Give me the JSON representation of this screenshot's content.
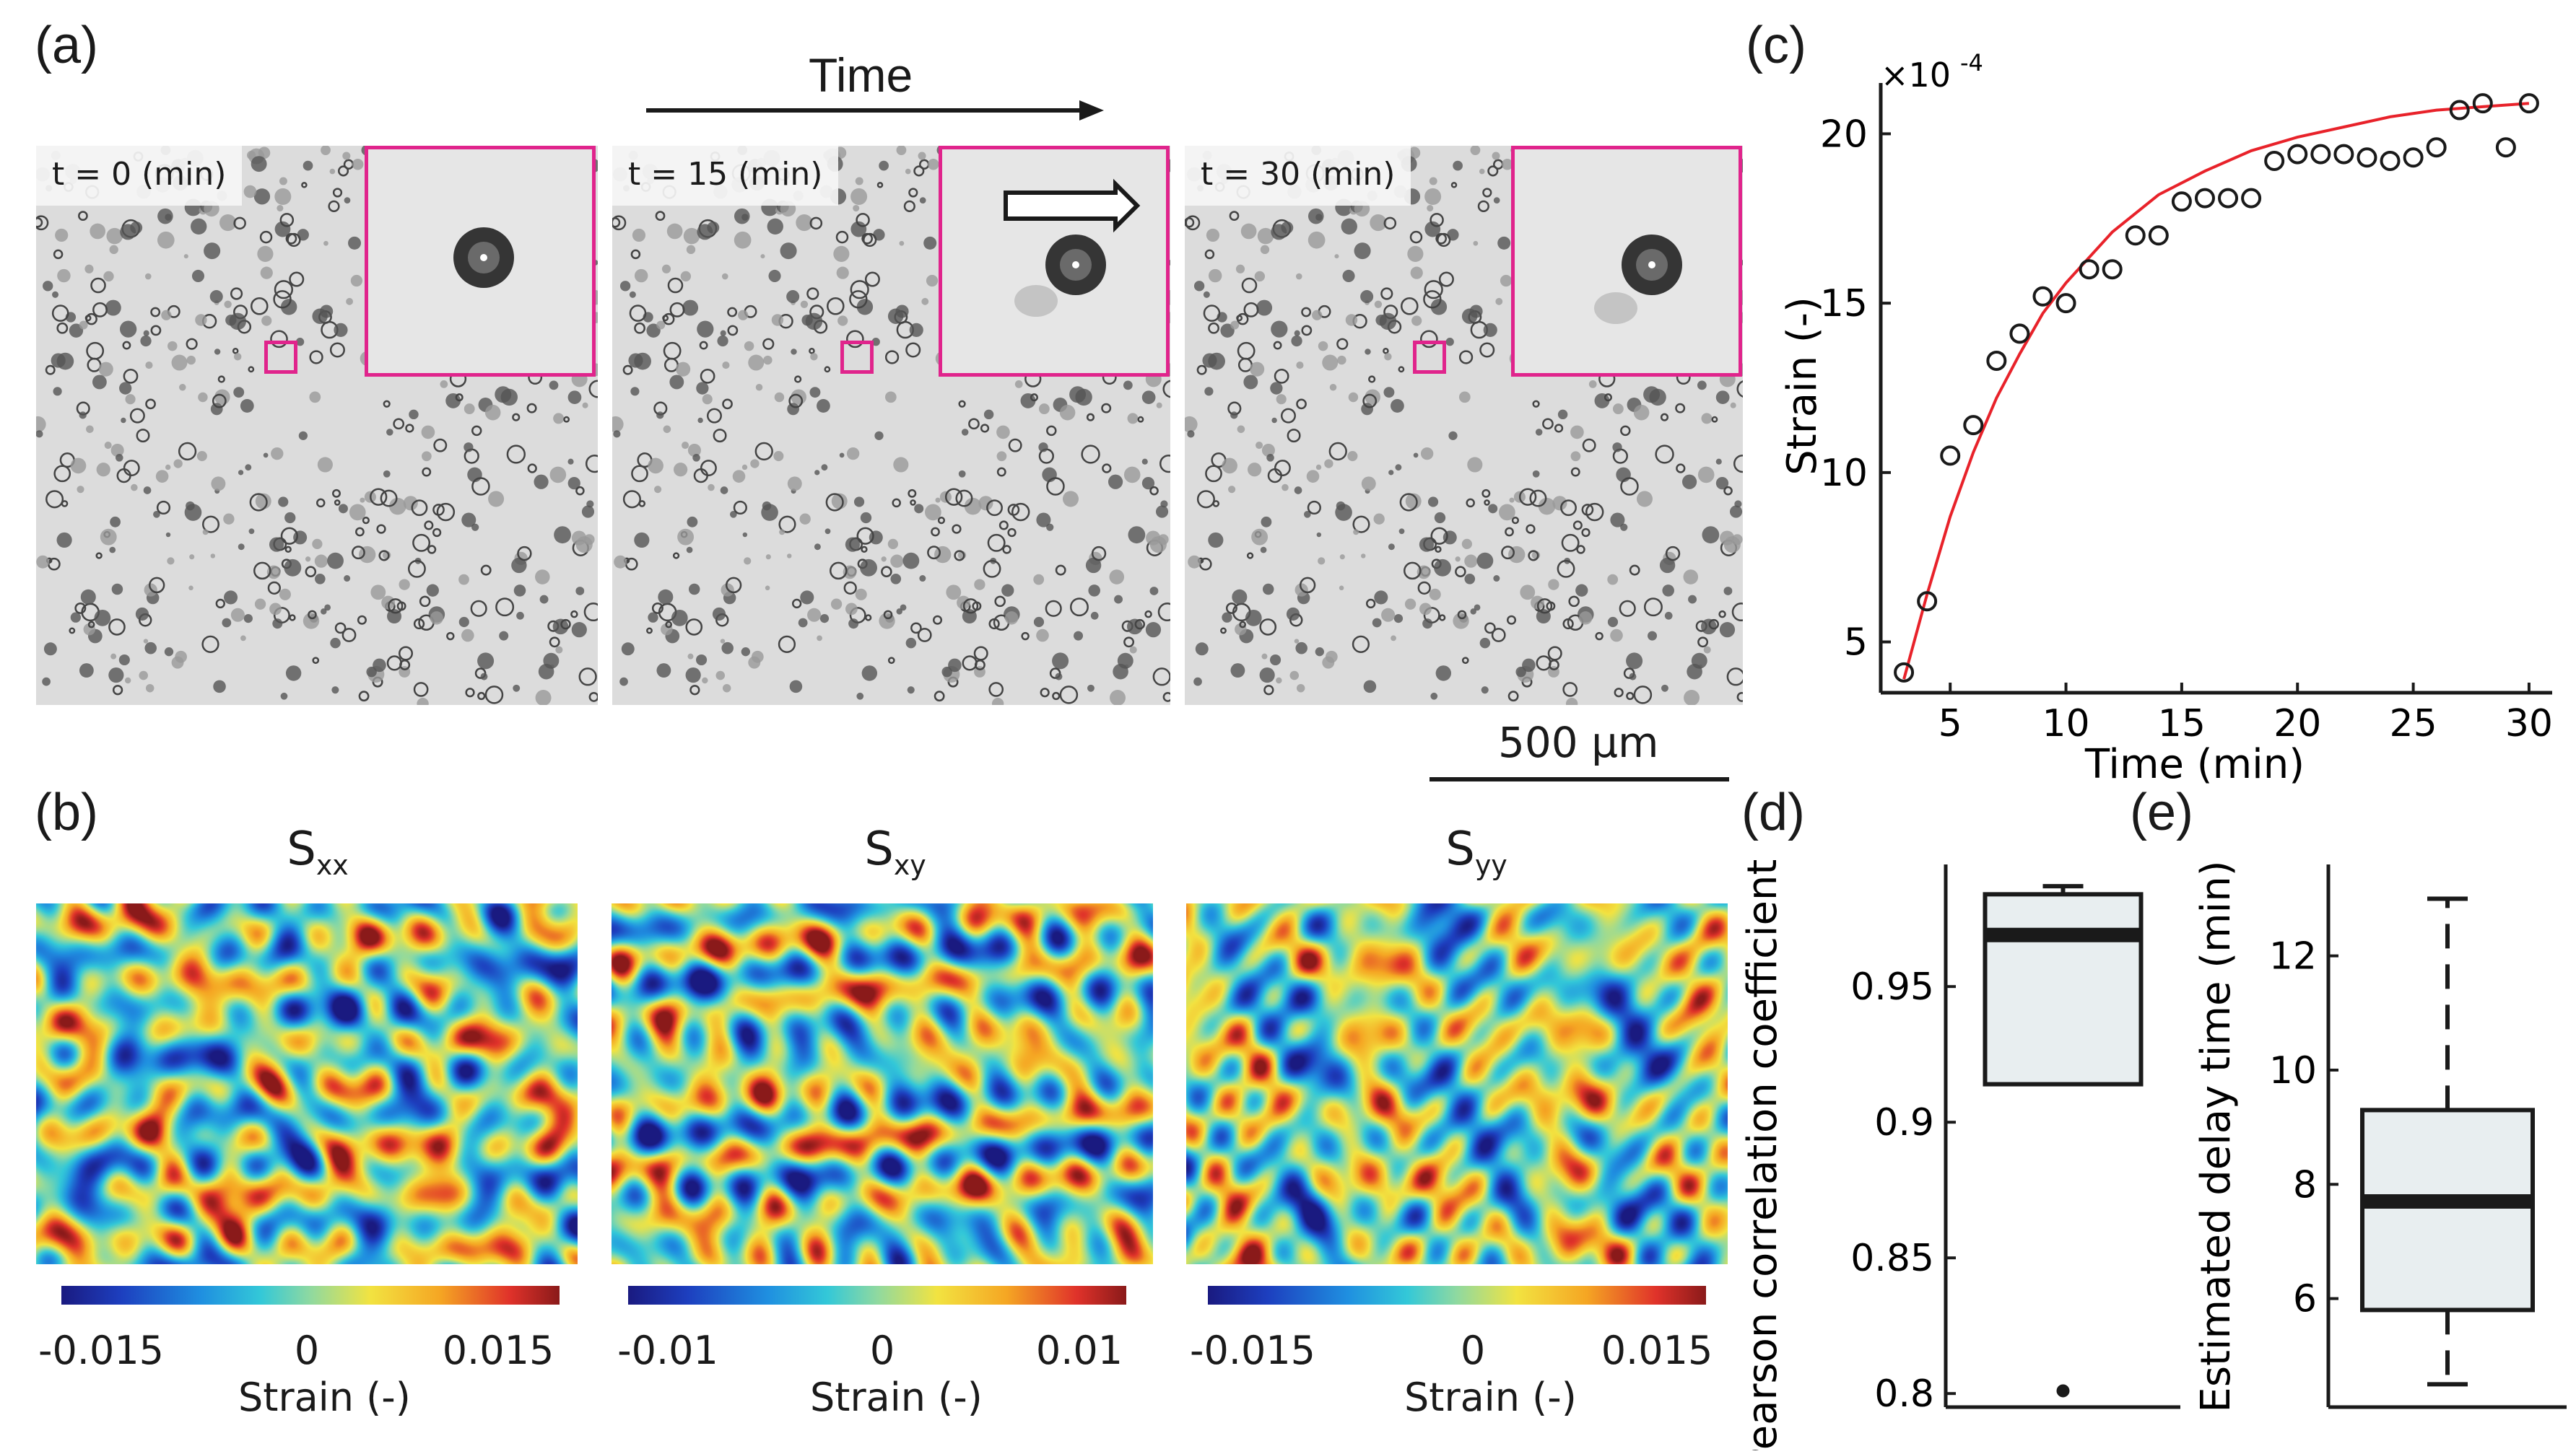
{
  "panel_a": {
    "label": "(a)",
    "time_label": "Time",
    "frames": [
      {
        "time_label": "t = 0 (min)"
      },
      {
        "time_label": "t = 15 (min)"
      },
      {
        "time_label": "t = 30 (min)"
      }
    ],
    "scale_bar": "500 μm",
    "inset_color": "#e0248c"
  },
  "panel_b": {
    "label": "(b)",
    "maps": [
      {
        "name_main": "S",
        "name_sub": "xx",
        "ticks": [
          "-0.015",
          "0",
          "0.015"
        ],
        "xlabel": "Strain (-)"
      },
      {
        "name_main": "S",
        "name_sub": "xy",
        "ticks": [
          "-0.01",
          "0",
          "0.01"
        ],
        "xlabel": "Strain (-)"
      },
      {
        "name_main": "S",
        "name_sub": "yy",
        "ticks": [
          "-0.015",
          "0",
          "0.015"
        ],
        "xlabel": "Strain (-)"
      }
    ]
  },
  "panel_c": {
    "label": "(c)"
  },
  "panel_d": {
    "label": "(d)"
  },
  "panel_e": {
    "label": "(e)"
  },
  "chart_data": [
    {
      "id": "c",
      "type": "scatter",
      "title": "",
      "xlabel": "Time (min)",
      "ylabel": "Strain (-)",
      "multiplier": "×10",
      "multiplier_exp": "-4",
      "xlim": [
        2,
        31
      ],
      "ylim": [
        3.5,
        21.5
      ],
      "xticks": [
        5,
        10,
        15,
        20,
        25,
        30
      ],
      "yticks": [
        5,
        10,
        15,
        20
      ],
      "series": [
        {
          "name": "measured",
          "x": [
            3,
            4,
            5,
            6,
            7,
            8,
            9,
            10,
            11,
            12,
            13,
            14,
            15,
            16,
            17,
            18,
            19,
            20,
            21,
            22,
            23,
            24,
            25,
            26,
            27,
            28,
            29,
            30
          ],
          "values": [
            4.1,
            6.2,
            10.5,
            11.4,
            13.3,
            14.1,
            15.2,
            15.0,
            16.0,
            16.0,
            17.0,
            17.0,
            18.0,
            18.1,
            18.1,
            18.1,
            19.2,
            19.4,
            19.4,
            19.4,
            19.3,
            19.2,
            19.3,
            19.6,
            20.7,
            20.9,
            19.6,
            20.9
          ]
        },
        {
          "name": "fit",
          "color": "#e8222a",
          "x": [
            3,
            4,
            5,
            6,
            7,
            8,
            9,
            10,
            12,
            14,
            16,
            18,
            20,
            22,
            24,
            26,
            28,
            30
          ],
          "values": [
            3.9,
            6.4,
            8.7,
            10.6,
            12.2,
            13.5,
            14.7,
            15.6,
            17.1,
            18.2,
            18.9,
            19.5,
            19.9,
            20.2,
            20.5,
            20.7,
            20.8,
            20.9
          ]
        }
      ]
    },
    {
      "id": "d",
      "type": "box",
      "ylabel": "Pearson correlation coefficient (-)",
      "ylim": [
        0.795,
        0.995
      ],
      "yticks": [
        0.8,
        0.85,
        0.9,
        0.95
      ],
      "box": {
        "q1": 0.914,
        "median": 0.969,
        "q3": 0.984,
        "whisker_low": 0.914,
        "whisker_high": 0.987,
        "outliers": [
          0.801
        ]
      }
    },
    {
      "id": "e",
      "type": "box",
      "ylabel": "Estimated delay time (min)",
      "ylim": [
        4.1,
        13.6
      ],
      "yticks": [
        6,
        8,
        10,
        12
      ],
      "box": {
        "q1": 5.8,
        "median": 7.7,
        "q3": 9.3,
        "whisker_low": 4.5,
        "whisker_high": 13.0,
        "outliers": []
      }
    }
  ]
}
